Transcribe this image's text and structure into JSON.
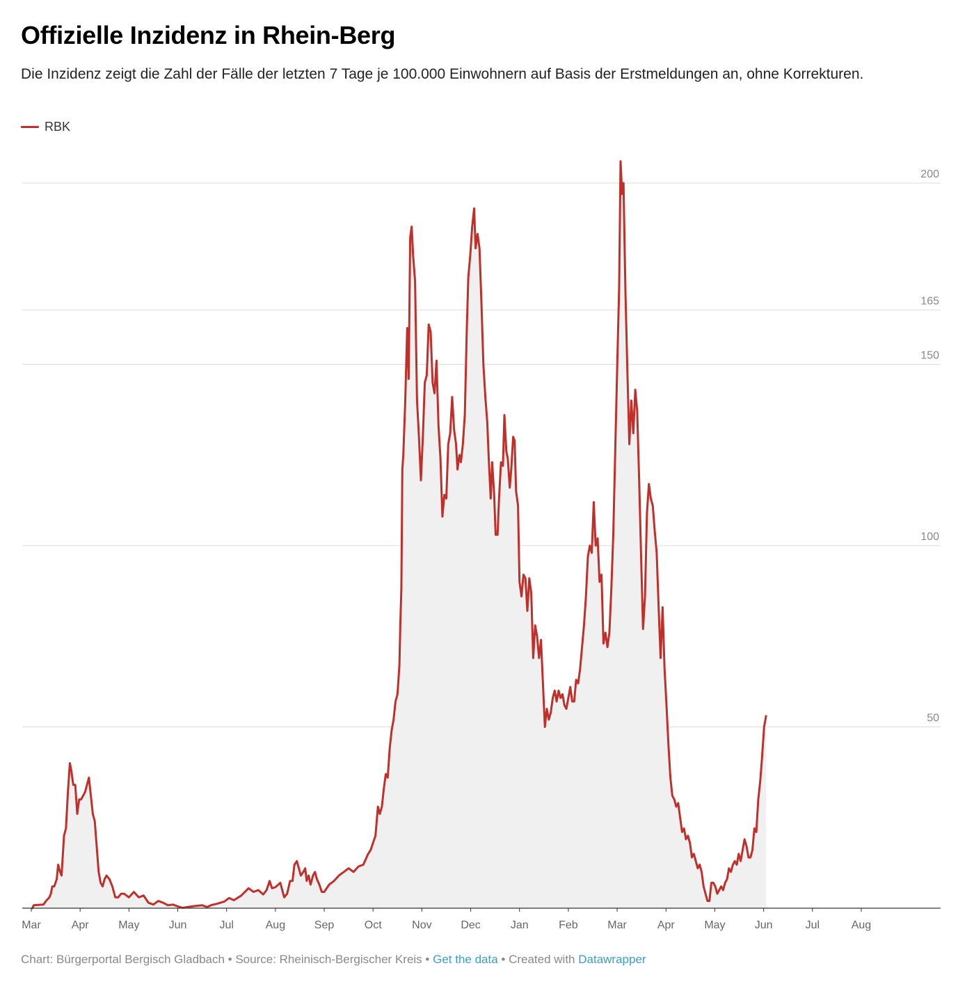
{
  "title": "Offizielle Inzidenz in Rhein-Berg",
  "subtitle": "Die Inzidenz zeigt die Zahl der Fälle der letzten 7 Tage je 100.000 Einwohnern auf Basis der Erstmeldungen an, ohne Korrekturen.",
  "footer": {
    "chart_label": "Chart: Bürgerportal Bergisch Gladbach",
    "sep1": " • ",
    "source_label": "Source: Rheinisch-Bergischer Kreis",
    "sep2": " • ",
    "get_data": "Get the data",
    "sep3": " • Created with ",
    "tool": "Datawrapper"
  },
  "colors": {
    "line": "#c0302b",
    "area": "#f0f0f0",
    "grid": "#dddddd",
    "axis": "#333333",
    "tick_text": "#888888",
    "link": "#3c9dc4"
  },
  "chart_data": {
    "type": "area",
    "series": [
      {
        "name": "RBK",
        "color": "#c0302b"
      }
    ],
    "yticks": [
      50,
      100,
      150,
      165,
      200
    ],
    "ylim": [
      0,
      206
    ],
    "xlabel": "",
    "ylabel": "",
    "grid": true,
    "legend": "top-left",
    "month_ticks": [
      {
        "label": "Mar",
        "t": 0
      },
      {
        "label": "Apr",
        "t": 1
      },
      {
        "label": "May",
        "t": 2
      },
      {
        "label": "Jun",
        "t": 3
      },
      {
        "label": "Jul",
        "t": 4
      },
      {
        "label": "Aug",
        "t": 5
      },
      {
        "label": "Sep",
        "t": 6
      },
      {
        "label": "Oct",
        "t": 7
      },
      {
        "label": "Nov",
        "t": 8
      },
      {
        "label": "Dec",
        "t": 9
      },
      {
        "label": "Jan",
        "t": 10
      },
      {
        "label": "Feb",
        "t": 11
      },
      {
        "label": "Mar",
        "t": 12
      },
      {
        "label": "Apr",
        "t": 13
      },
      {
        "label": "May",
        "t": 14
      },
      {
        "label": "Jun",
        "t": 15
      },
      {
        "label": "Jul",
        "t": 16
      },
      {
        "label": "Aug",
        "t": 17
      }
    ],
    "x_max": 18.7,
    "points": [
      [
        0.02,
        0
      ],
      [
        0.05,
        0.8
      ],
      [
        0.25,
        1
      ],
      [
        0.3,
        2
      ],
      [
        0.37,
        3
      ],
      [
        0.4,
        4
      ],
      [
        0.43,
        6
      ],
      [
        0.47,
        6
      ],
      [
        0.52,
        8
      ],
      [
        0.55,
        12
      ],
      [
        0.59,
        10
      ],
      [
        0.62,
        9
      ],
      [
        0.67,
        20
      ],
      [
        0.71,
        22
      ],
      [
        0.75,
        32
      ],
      [
        0.79,
        40
      ],
      [
        0.82,
        38
      ],
      [
        0.86,
        34
      ],
      [
        0.9,
        34
      ],
      [
        0.94,
        26
      ],
      [
        0.98,
        30
      ],
      [
        1.02,
        30
      ],
      [
        1.06,
        31
      ],
      [
        1.1,
        32
      ],
      [
        1.14,
        34
      ],
      [
        1.18,
        36
      ],
      [
        1.22,
        31
      ],
      [
        1.26,
        26
      ],
      [
        1.3,
        24
      ],
      [
        1.34,
        17
      ],
      [
        1.38,
        10
      ],
      [
        1.42,
        7
      ],
      [
        1.46,
        6
      ],
      [
        1.5,
        8
      ],
      [
        1.54,
        9
      ],
      [
        1.6,
        8
      ],
      [
        1.66,
        6
      ],
      [
        1.72,
        3
      ],
      [
        1.78,
        3
      ],
      [
        1.84,
        4
      ],
      [
        1.9,
        4
      ],
      [
        2.0,
        3
      ],
      [
        2.1,
        4.5
      ],
      [
        2.2,
        3
      ],
      [
        2.3,
        3.5
      ],
      [
        2.4,
        1.5
      ],
      [
        2.5,
        1
      ],
      [
        2.6,
        2
      ],
      [
        2.7,
        1.5
      ],
      [
        2.8,
        0.8
      ],
      [
        2.9,
        1
      ],
      [
        3.0,
        0.5
      ],
      [
        3.1,
        0.1
      ],
      [
        3.2,
        0.3
      ],
      [
        3.35,
        0.6
      ],
      [
        3.5,
        0.8
      ],
      [
        3.6,
        0.3
      ],
      [
        3.7,
        0.9
      ],
      [
        3.8,
        1.2
      ],
      [
        3.95,
        1.8
      ],
      [
        4.05,
        2.8
      ],
      [
        4.15,
        2.2
      ],
      [
        4.3,
        3.5
      ],
      [
        4.45,
        5.5
      ],
      [
        4.55,
        4.5
      ],
      [
        4.65,
        5
      ],
      [
        4.75,
        3.8
      ],
      [
        4.82,
        5
      ],
      [
        4.88,
        7.5
      ],
      [
        4.93,
        5.5
      ],
      [
        5.0,
        5.8
      ],
      [
        5.1,
        7
      ],
      [
        5.18,
        3
      ],
      [
        5.24,
        4
      ],
      [
        5.3,
        7.5
      ],
      [
        5.35,
        7.5
      ],
      [
        5.39,
        12
      ],
      [
        5.44,
        13
      ],
      [
        5.48,
        11
      ],
      [
        5.52,
        9
      ],
      [
        5.57,
        10
      ],
      [
        5.61,
        11
      ],
      [
        5.64,
        7.5
      ],
      [
        5.68,
        9
      ],
      [
        5.72,
        6.5
      ],
      [
        5.77,
        9
      ],
      [
        5.81,
        10
      ],
      [
        5.85,
        8
      ],
      [
        5.9,
        6.5
      ],
      [
        5.95,
        4.5
      ],
      [
        6.0,
        4.5
      ],
      [
        6.1,
        6.5
      ],
      [
        6.2,
        7.5
      ],
      [
        6.3,
        9
      ],
      [
        6.4,
        10
      ],
      [
        6.5,
        11
      ],
      [
        6.6,
        10
      ],
      [
        6.7,
        11.5
      ],
      [
        6.8,
        12
      ],
      [
        6.9,
        15
      ],
      [
        6.95,
        16
      ],
      [
        7.0,
        18
      ],
      [
        7.05,
        20
      ],
      [
        7.1,
        28
      ],
      [
        7.14,
        26
      ],
      [
        7.18,
        28
      ],
      [
        7.22,
        33
      ],
      [
        7.26,
        37
      ],
      [
        7.3,
        36
      ],
      [
        7.34,
        44
      ],
      [
        7.38,
        49
      ],
      [
        7.42,
        52
      ],
      [
        7.46,
        57
      ],
      [
        7.5,
        59
      ],
      [
        7.54,
        67
      ],
      [
        7.56,
        79
      ],
      [
        7.58,
        88
      ],
      [
        7.6,
        121
      ],
      [
        7.62,
        125
      ],
      [
        7.66,
        140
      ],
      [
        7.7,
        160
      ],
      [
        7.73,
        146
      ],
      [
        7.76,
        185
      ],
      [
        7.79,
        188
      ],
      [
        7.82,
        180
      ],
      [
        7.86,
        173
      ],
      [
        7.9,
        140
      ],
      [
        7.94,
        130
      ],
      [
        7.98,
        118
      ],
      [
        8.02,
        130
      ],
      [
        8.06,
        145
      ],
      [
        8.1,
        147
      ],
      [
        8.14,
        161
      ],
      [
        8.18,
        159
      ],
      [
        8.22,
        145
      ],
      [
        8.26,
        142
      ],
      [
        8.3,
        151
      ],
      [
        8.34,
        133
      ],
      [
        8.38,
        124
      ],
      [
        8.42,
        108
      ],
      [
        8.46,
        114
      ],
      [
        8.5,
        113
      ],
      [
        8.54,
        128
      ],
      [
        8.58,
        131
      ],
      [
        8.62,
        141
      ],
      [
        8.66,
        132
      ],
      [
        8.7,
        128
      ],
      [
        8.73,
        121
      ],
      [
        8.77,
        125
      ],
      [
        8.8,
        123
      ],
      [
        8.84,
        128
      ],
      [
        8.88,
        136
      ],
      [
        8.92,
        160
      ],
      [
        8.95,
        174
      ],
      [
        8.99,
        180
      ],
      [
        9.03,
        188
      ],
      [
        9.07,
        193
      ],
      [
        9.1,
        182
      ],
      [
        9.14,
        186
      ],
      [
        9.18,
        182
      ],
      [
        9.22,
        167
      ],
      [
        9.26,
        150
      ],
      [
        9.3,
        141
      ],
      [
        9.34,
        134
      ],
      [
        9.37,
        124
      ],
      [
        9.41,
        113
      ],
      [
        9.44,
        123
      ],
      [
        9.48,
        114
      ],
      [
        9.51,
        103
      ],
      [
        9.55,
        103
      ],
      [
        9.58,
        113
      ],
      [
        9.62,
        123
      ],
      [
        9.66,
        122
      ],
      [
        9.69,
        136
      ],
      [
        9.73,
        126
      ],
      [
        9.76,
        124
      ],
      [
        9.8,
        116
      ],
      [
        9.83,
        121
      ],
      [
        9.87,
        130
      ],
      [
        9.9,
        129
      ],
      [
        9.93,
        115
      ],
      [
        9.97,
        111
      ],
      [
        10.0,
        90
      ],
      [
        10.04,
        86
      ],
      [
        10.08,
        92
      ],
      [
        10.12,
        91
      ],
      [
        10.16,
        82
      ],
      [
        10.2,
        91
      ],
      [
        10.24,
        87
      ],
      [
        10.28,
        69
      ],
      [
        10.32,
        78
      ],
      [
        10.36,
        75
      ],
      [
        10.4,
        69
      ],
      [
        10.44,
        74
      ],
      [
        10.48,
        62
      ],
      [
        10.52,
        50
      ],
      [
        10.56,
        55
      ],
      [
        10.6,
        52
      ],
      [
        10.64,
        54
      ],
      [
        10.68,
        58
      ],
      [
        10.72,
        60
      ],
      [
        10.76,
        57
      ],
      [
        10.8,
        60
      ],
      [
        10.84,
        58
      ],
      [
        10.88,
        59
      ],
      [
        10.92,
        56
      ],
      [
        10.96,
        55
      ],
      [
        11.0,
        58
      ],
      [
        11.04,
        61
      ],
      [
        11.08,
        57
      ],
      [
        11.12,
        57
      ],
      [
        11.16,
        63
      ],
      [
        11.2,
        62
      ],
      [
        11.24,
        66
      ],
      [
        11.28,
        72
      ],
      [
        11.32,
        78
      ],
      [
        11.36,
        86
      ],
      [
        11.4,
        97
      ],
      [
        11.44,
        100
      ],
      [
        11.48,
        98
      ],
      [
        11.52,
        112
      ],
      [
        11.56,
        100
      ],
      [
        11.6,
        102
      ],
      [
        11.64,
        90
      ],
      [
        11.68,
        92
      ],
      [
        11.72,
        73
      ],
      [
        11.76,
        76
      ],
      [
        11.8,
        72
      ],
      [
        11.84,
        76
      ],
      [
        11.88,
        88
      ],
      [
        11.92,
        103
      ],
      [
        11.96,
        126
      ],
      [
        12.0,
        149
      ],
      [
        12.04,
        171
      ],
      [
        12.07,
        206
      ],
      [
        12.1,
        197
      ],
      [
        12.13,
        200
      ],
      [
        12.17,
        170
      ],
      [
        12.21,
        148
      ],
      [
        12.25,
        128
      ],
      [
        12.29,
        140
      ],
      [
        12.33,
        131
      ],
      [
        12.37,
        143
      ],
      [
        12.41,
        137
      ],
      [
        12.45,
        118
      ],
      [
        12.49,
        97
      ],
      [
        12.53,
        77
      ],
      [
        12.57,
        86
      ],
      [
        12.61,
        109
      ],
      [
        12.65,
        117
      ],
      [
        12.69,
        113
      ],
      [
        12.73,
        111
      ],
      [
        12.77,
        104
      ],
      [
        12.81,
        98
      ],
      [
        12.85,
        83
      ],
      [
        12.89,
        69
      ],
      [
        12.93,
        83
      ],
      [
        12.97,
        66
      ],
      [
        13.01,
        56
      ],
      [
        13.05,
        45
      ],
      [
        13.09,
        36
      ],
      [
        13.13,
        31
      ],
      [
        13.17,
        30
      ],
      [
        13.21,
        28
      ],
      [
        13.25,
        29
      ],
      [
        13.29,
        25
      ],
      [
        13.33,
        21
      ],
      [
        13.37,
        22
      ],
      [
        13.41,
        19
      ],
      [
        13.45,
        20
      ],
      [
        13.49,
        18
      ],
      [
        13.53,
        14
      ],
      [
        13.57,
        15
      ],
      [
        13.61,
        13
      ],
      [
        13.65,
        11
      ],
      [
        13.69,
        12
      ],
      [
        13.73,
        10
      ],
      [
        13.77,
        6
      ],
      [
        13.81,
        4
      ],
      [
        13.85,
        2
      ],
      [
        13.89,
        2
      ],
      [
        13.93,
        7
      ],
      [
        13.97,
        7
      ],
      [
        14.01,
        6
      ],
      [
        14.05,
        4
      ],
      [
        14.09,
        5
      ],
      [
        14.13,
        6
      ],
      [
        14.17,
        5
      ],
      [
        14.21,
        7
      ],
      [
        14.25,
        8
      ],
      [
        14.29,
        11
      ],
      [
        14.33,
        10
      ],
      [
        14.37,
        12
      ],
      [
        14.41,
        13
      ],
      [
        14.45,
        12
      ],
      [
        14.49,
        15
      ],
      [
        14.53,
        13
      ],
      [
        14.57,
        16
      ],
      [
        14.61,
        19
      ],
      [
        14.65,
        17
      ],
      [
        14.69,
        14
      ],
      [
        14.73,
        14
      ],
      [
        14.77,
        16
      ],
      [
        14.81,
        22
      ],
      [
        14.85,
        21
      ],
      [
        14.89,
        30
      ],
      [
        14.93,
        35
      ],
      [
        14.97,
        42
      ],
      [
        15.01,
        50
      ],
      [
        15.05,
        53
      ]
    ],
    "note": "t axis: 0 = start of first month shown (Mar); each unit = one month."
  }
}
